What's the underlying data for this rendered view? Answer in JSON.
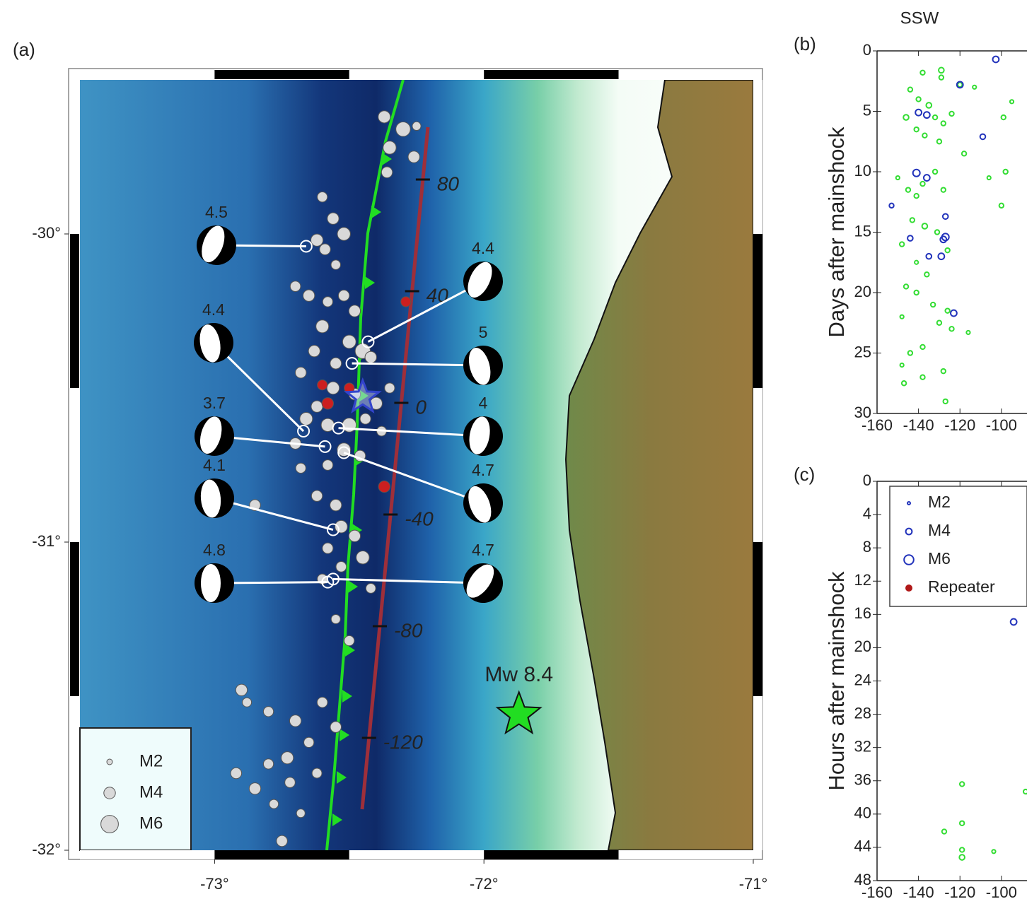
{
  "chart_data": [
    {
      "type": "map",
      "label": "(a)",
      "xlim": [
        -73.5,
        -71
      ],
      "ylim": [
        -32,
        -29.5
      ],
      "xticks": [
        {
          "value": -73,
          "label": "-73°"
        },
        {
          "value": -72,
          "label": "-72°"
        },
        {
          "value": -71,
          "label": "-71°"
        }
      ],
      "yticks": [
        {
          "value": -30,
          "label": "-30°"
        },
        {
          "value": -31,
          "label": "-31°"
        },
        {
          "value": -32,
          "label": "-32°"
        }
      ],
      "events": {
        "color": "#d9d9d9",
        "lon": [
          -72.37,
          -72.3,
          -72.25,
          -72.35,
          -72.26,
          -72.36,
          -72.6,
          -72.56,
          -72.52,
          -72.59,
          -72.62,
          -72.55,
          -72.7,
          -72.65,
          -72.58,
          -72.52,
          -72.48,
          -72.6,
          -72.5,
          -72.45,
          -72.42,
          -72.55,
          -72.63,
          -72.68,
          -72.56,
          -72.48,
          -72.4,
          -72.35,
          -72.62,
          -72.66,
          -72.58,
          -72.5,
          -72.44,
          -72.38,
          -72.7,
          -72.52,
          -72.46,
          -72.58,
          -72.68,
          -72.62,
          -72.55,
          -72.53,
          -72.48,
          -72.58,
          -72.45,
          -72.53,
          -72.6,
          -72.42,
          -72.55,
          -72.5,
          -72.85,
          -72.9,
          -72.88,
          -72.8,
          -72.7,
          -72.6,
          -72.55,
          -72.65,
          -72.73,
          -72.8,
          -72.92,
          -72.85,
          -72.72,
          -72.62,
          -72.78,
          -72.68,
          -72.75
        ],
        "lat": [
          -29.62,
          -29.66,
          -29.65,
          -29.72,
          -29.75,
          -29.8,
          -29.88,
          -29.95,
          -30.0,
          -30.05,
          -30.02,
          -30.1,
          -30.17,
          -30.2,
          -30.22,
          -30.2,
          -30.25,
          -30.3,
          -30.35,
          -30.38,
          -30.4,
          -30.42,
          -30.38,
          -30.45,
          -30.5,
          -30.52,
          -30.55,
          -30.5,
          -30.56,
          -30.6,
          -30.62,
          -30.62,
          -30.6,
          -30.64,
          -30.68,
          -30.7,
          -30.72,
          -30.75,
          -30.76,
          -30.85,
          -30.88,
          -30.95,
          -30.98,
          -31.02,
          -31.05,
          -31.08,
          -31.12,
          -31.15,
          -31.25,
          -31.32,
          -30.88,
          -31.48,
          -31.52,
          -31.55,
          -31.58,
          -31.52,
          -31.6,
          -31.65,
          -31.7,
          -31.72,
          -31.75,
          -31.8,
          -31.78,
          -31.75,
          -31.85,
          -31.88,
          -31.97
        ],
        "magnitude": [
          4.2,
          5.0,
          3.0,
          4.5,
          4.0,
          3.8,
          3.5,
          4.0,
          4.5,
          3.8,
          4.2,
          3.3,
          3.6,
          4.0,
          3.5,
          3.8,
          4.0,
          4.4,
          4.6,
          5.2,
          4.0,
          3.9,
          4.0,
          3.8,
          4.3,
          4.0,
          4.2,
          3.5,
          4.0,
          4.4,
          4.5,
          4.8,
          3.7,
          3.4,
          3.9,
          4.6,
          3.8,
          3.6,
          3.5,
          3.8,
          4.0,
          4.3,
          4.0,
          3.7,
          4.5,
          3.6,
          3.5,
          3.4,
          3.2,
          3.5,
          3.8,
          4.0,
          3.2,
          3.5,
          4.0,
          3.6,
          3.8,
          3.5,
          4.2,
          3.5,
          3.8,
          4.0,
          3.6,
          3.4,
          3.2,
          3.0,
          3.8
        ]
      },
      "repeaters": {
        "color": "#cc1f1f",
        "lon": [
          -72.29,
          -72.37,
          -72.58,
          -72.6,
          -72.5
        ],
        "lat": [
          -30.22,
          -30.82,
          -30.55,
          -30.49,
          -30.5
        ],
        "magnitude": [
          3.5,
          4,
          4,
          3.5,
          3.5
        ]
      },
      "profile_ticks": [
        80,
        40,
        0,
        -40,
        -80,
        -120
      ],
      "focal_mechanisms": [
        {
          "magnitude": 4.5,
          "lon": -72.66,
          "lat": -30.04
        },
        {
          "magnitude": 4.4,
          "lon": -72.67,
          "lat": -30.64
        },
        {
          "magnitude": 3.7,
          "lon": -72.59,
          "lat": -30.69
        },
        {
          "magnitude": 4.1,
          "lon": -72.56,
          "lat": -30.96
        },
        {
          "magnitude": 4.8,
          "lon": -72.58,
          "lat": -31.13
        },
        {
          "magnitude": 4.4,
          "lon": -72.43,
          "lat": -30.35
        },
        {
          "magnitude": 5.0,
          "lon": -72.49,
          "lat": -30.42
        },
        {
          "magnitude": 4.0,
          "lon": -72.54,
          "lat": -30.63
        },
        {
          "magnitude": 4.7,
          "lon": -72.52,
          "lat": -30.71
        },
        {
          "magnitude": 4.7,
          "lon": -72.56,
          "lat": -31.12
        }
      ],
      "mainshock": {
        "label": "Mw 8.4",
        "lon": -71.87,
        "lat": -31.56,
        "color": "#22dd22"
      },
      "epicenter": {
        "lon": -72.45,
        "lat": -30.53,
        "color": "#3344cc"
      },
      "legend": [
        {
          "label": "M2",
          "magnitude": 2
        },
        {
          "label": "M4",
          "magnitude": 4
        },
        {
          "label": "M6",
          "magnitude": 6
        }
      ]
    },
    {
      "type": "scatter",
      "label": "(b)",
      "title": "SSW",
      "ylabel": "Days after mainshock",
      "xlim": [
        -160,
        -88
      ],
      "ylim": [
        0,
        30
      ],
      "invert_y": true,
      "xticks": [
        -160,
        -140,
        -120,
        -100
      ],
      "yticks": [
        0,
        5,
        10,
        15,
        20,
        25,
        30
      ],
      "series": [
        {
          "color": "#33dd33",
          "x": [
            -144,
            -138,
            -129,
            -129,
            -120,
            -113,
            -140,
            -135,
            -132,
            -128,
            -124,
            -146,
            -141,
            -137,
            -130,
            -118,
            -106,
            -100,
            -150,
            -145,
            -141,
            -138,
            -132,
            -128,
            -143,
            -137,
            -131,
            -126,
            -148,
            -141,
            -136,
            -146,
            -141,
            -133,
            -126,
            -148,
            -130,
            -124,
            -116,
            -144,
            -138,
            -128,
            -148,
            -147,
            -138,
            -127,
            -99,
            -95,
            -98
          ],
          "y": [
            3.2,
            1.8,
            1.6,
            2.2,
            2.8,
            3.0,
            4.0,
            4.5,
            5.5,
            6.0,
            5.2,
            5.5,
            6.5,
            7.0,
            7.5,
            8.5,
            10.5,
            12.8,
            10.5,
            11.5,
            12.0,
            11.0,
            10.0,
            11.5,
            14.0,
            14.5,
            15.0,
            16.5,
            16.0,
            17.5,
            18.5,
            19.5,
            20.0,
            21.0,
            21.5,
            22.0,
            22.5,
            23.0,
            23.3,
            25.0,
            24.5,
            26.5,
            26.0,
            27.5,
            27.0,
            29.0,
            5.5,
            4.2,
            10.0
          ],
          "magnitude": [
            3,
            3,
            3.5,
            3,
            3,
            2.5,
            3,
            3.5,
            3,
            3,
            3,
            3.5,
            3,
            3,
            3,
            3,
            2.5,
            3,
            2.5,
            3,
            3,
            3,
            3,
            3,
            3,
            3.5,
            3,
            3,
            3,
            2.5,
            3,
            3,
            3,
            3,
            3,
            2.5,
            3,
            3,
            2.5,
            3,
            3,
            3,
            2.5,
            3,
            3,
            3,
            3,
            2.5,
            3
          ]
        },
        {
          "color": "#2233bb",
          "x": [
            -102.7,
            -120,
            -140,
            -136,
            -109,
            -141,
            -136,
            -153,
            -127,
            -127,
            -144,
            -128,
            -135,
            -129,
            -123
          ],
          "y": [
            0.7,
            2.8,
            5.1,
            5.3,
            7.1,
            10.1,
            10.5,
            12.8,
            13.7,
            15.4,
            15.5,
            15.6,
            17.0,
            17.0,
            21.7
          ],
          "magnitude": [
            4,
            4,
            4,
            4,
            3.5,
            4.5,
            4,
            3,
            3.5,
            4.5,
            3.5,
            4,
            3.5,
            4,
            4
          ]
        }
      ]
    },
    {
      "type": "scatter",
      "label": "(c)",
      "ylabel": "Hours after mainshock",
      "xlim": [
        -160,
        -88
      ],
      "ylim": [
        0,
        48
      ],
      "invert_y": true,
      "xticks": [
        -160,
        -140,
        -120,
        -100
      ],
      "yticks": [
        0,
        4,
        8,
        12,
        16,
        20,
        24,
        28,
        32,
        36,
        40,
        44,
        48
      ],
      "series": [
        {
          "color": "#33dd33",
          "x": [
            -119,
            -127.6,
            -119,
            -119,
            -119,
            -103.7,
            -88.3
          ],
          "y": [
            36.4,
            42.1,
            41.1,
            44.3,
            45.2,
            44.5,
            37.3
          ],
          "magnitude": [
            3,
            3,
            3,
            3,
            3.5,
            2.5,
            3
          ]
        },
        {
          "color": "#2233bb",
          "x": [
            -94.1
          ],
          "y": [
            16.9
          ],
          "magnitude": [
            4
          ]
        }
      ],
      "legend": [
        {
          "label": "M2",
          "magnitude": 2,
          "color": "#2233bb"
        },
        {
          "label": "M4",
          "magnitude": 4,
          "color": "#2233bb"
        },
        {
          "label": "M6",
          "magnitude": 6,
          "color": "#2233bb"
        },
        {
          "label": "Repeater",
          "color": "#b01818"
        }
      ]
    }
  ]
}
